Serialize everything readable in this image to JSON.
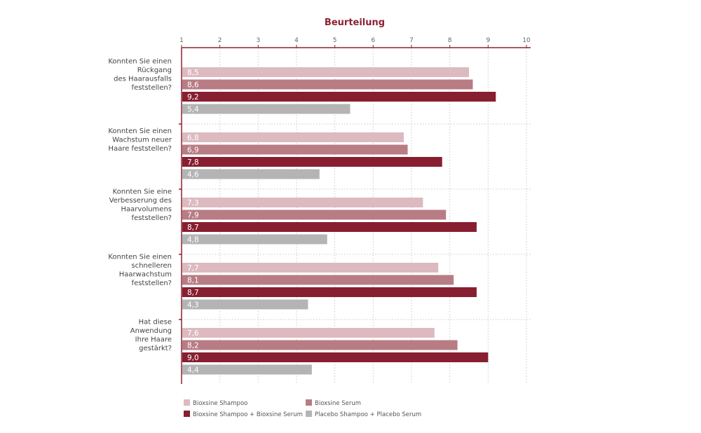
{
  "chart_data": {
    "type": "bar",
    "orientation": "horizontal",
    "title": "Beurteilung",
    "xlim": [
      1,
      10
    ],
    "xticks": [
      "1",
      "2",
      "3",
      "4",
      "5",
      "6",
      "7",
      "8",
      "9",
      "10"
    ],
    "grid": true,
    "legend_position": "bottom",
    "categories": [
      [
        "Konnten Sie einen",
        "Rückgang",
        "des Haarausfalls",
        "feststellen?"
      ],
      [
        "Konnten Sie einen",
        "Wachstum neuer",
        "Haare feststellen?"
      ],
      [
        "Konnten Sie eine",
        "Verbesserung des",
        "Haarvolumens",
        "feststellen?"
      ],
      [
        "Konnten Sie einen",
        "schnelleren",
        "Haarwachstum",
        "feststellen?"
      ],
      [
        "Hat diese",
        "Anwendung",
        "Ihre Haare",
        "gestärkt?"
      ]
    ],
    "series": [
      {
        "name": "Bioxsine Shampoo",
        "color": "#dcbac0",
        "values": [
          8.5,
          6.8,
          7.3,
          7.7,
          7.6
        ],
        "labels": [
          "8,5",
          "6,8",
          "7,3",
          "7,7",
          "7,6"
        ]
      },
      {
        "name": "Bioxsine Serum",
        "color": "#b87c84",
        "values": [
          8.6,
          6.9,
          7.9,
          8.1,
          8.2
        ],
        "labels": [
          "8,6",
          "6,9",
          "7,9",
          "8,1",
          "8,2"
        ]
      },
      {
        "name": "Bioxsine Shampoo + Bioxsine Serum",
        "color": "#871f30",
        "values": [
          9.2,
          7.8,
          8.7,
          8.7,
          9.0
        ],
        "labels": [
          "9,2",
          "7,8",
          "8,7",
          "8,7",
          "9,0"
        ]
      },
      {
        "name": "Placebo Shampoo + Placebo Serum",
        "color": "#b4b4b4",
        "values": [
          5.4,
          4.6,
          4.8,
          4.3,
          4.4
        ],
        "labels": [
          "5,4",
          "4,6",
          "4,8",
          "4,3",
          "4,4"
        ]
      }
    ]
  },
  "colors": {
    "accent": "#8b2232",
    "axis": "#8b2232",
    "grid": "#c8c8c8"
  }
}
